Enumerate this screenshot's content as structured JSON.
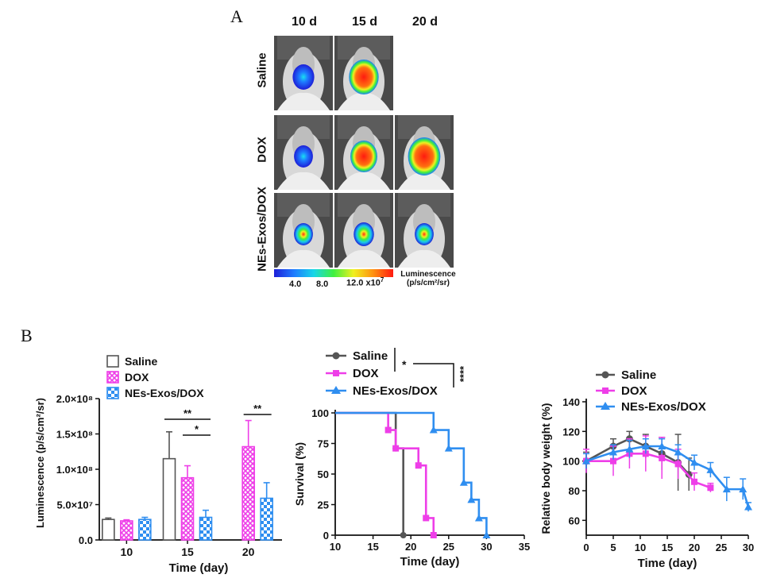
{
  "panelA": {
    "letter": "A",
    "columns": [
      "10 d",
      "15 d",
      "20 d"
    ],
    "rows": [
      "Saline",
      "DOX",
      "NEs-Exos/DOX"
    ],
    "colorbar": {
      "ticks": [
        "4.0",
        "8.0",
        "12.0"
      ],
      "exponent": "x10",
      "exponent_power": "7",
      "title_line1": "Luminescence",
      "title_line2": "(p/s/cm²/sr)"
    }
  },
  "panelB": {
    "letter": "B"
  },
  "colors": {
    "saline": "#555555",
    "dox": "#ee3ee8",
    "nes": "#2f8ef0"
  },
  "chart_data": [
    {
      "type": "bar",
      "categories": [
        "10",
        "15",
        "20"
      ],
      "xlabel": "Time (day)",
      "ylabel": "Luminescence (p/s/cm²/sr)",
      "ylim": [
        0,
        200000000
      ],
      "yticks": [
        "0.0",
        "5.0×10⁷",
        "1.0×10⁸",
        "1.5×10⁸",
        "2.0×10⁸"
      ],
      "legend_position": "top-left",
      "series": [
        {
          "name": "Saline",
          "values": [
            29000000,
            115000000,
            null
          ],
          "errors": [
            2000000,
            38000000,
            null
          ]
        },
        {
          "name": "DOX",
          "values": [
            27000000,
            88000000,
            132000000
          ],
          "errors": [
            1500000,
            17000000,
            37000000
          ]
        },
        {
          "name": "NEs-Exos/DOX",
          "values": [
            29000000,
            32000000,
            59000000
          ],
          "errors": [
            3000000,
            10000000,
            22000000
          ]
        }
      ],
      "annotations": [
        {
          "label": "**",
          "category": "15",
          "from": "Saline",
          "to": "NEs-Exos/DOX"
        },
        {
          "label": "*",
          "category": "15",
          "from": "DOX",
          "to": "NEs-Exos/DOX"
        },
        {
          "label": "**",
          "category": "20",
          "from": "DOX",
          "to": "NEs-Exos/DOX"
        }
      ]
    },
    {
      "type": "line",
      "subtype": "survival-step",
      "xlabel": "Time (day)",
      "ylabel": "Survival (%)",
      "xlim": [
        10,
        35
      ],
      "ylim": [
        0,
        100
      ],
      "xticks": [
        "10",
        "15",
        "20",
        "25",
        "30",
        "35"
      ],
      "yticks": [
        "0",
        "25",
        "50",
        "75",
        "100"
      ],
      "legend_position": "top-left",
      "series": [
        {
          "name": "Saline",
          "x": [
            10,
            18,
            18,
            19,
            19
          ],
          "y": [
            100,
            100,
            71,
            71,
            0
          ]
        },
        {
          "name": "DOX",
          "x": [
            10,
            17,
            17,
            18,
            18,
            21,
            21,
            22,
            22,
            23,
            23
          ],
          "y": [
            100,
            100,
            86,
            86,
            71,
            71,
            57,
            57,
            14,
            14,
            0
          ]
        },
        {
          "name": "NEs-Exos/DOX",
          "x": [
            10,
            23,
            23,
            25,
            25,
            27,
            27,
            28,
            28,
            29,
            29,
            30,
            30
          ],
          "y": [
            100,
            100,
            86,
            86,
            71,
            71,
            43,
            43,
            29,
            29,
            14,
            14,
            0
          ]
        }
      ],
      "annotations": [
        {
          "label": "*",
          "from": "Saline",
          "to": "DOX"
        },
        {
          "label": "****",
          "from": "Saline",
          "to": "NEs-Exos/DOX"
        }
      ]
    },
    {
      "type": "line",
      "xlabel": "Time (day)",
      "ylabel": "Relative body weight (%)",
      "xlim": [
        0,
        30
      ],
      "ylim": [
        50,
        140
      ],
      "xticks": [
        "0",
        "5",
        "10",
        "15",
        "20",
        "25",
        "30"
      ],
      "yticks": [
        "60",
        "80",
        "100",
        "120",
        "140"
      ],
      "legend_position": "top-left",
      "series": [
        {
          "name": "Saline",
          "x": [
            0,
            5,
            8,
            11,
            14,
            17,
            19
          ],
          "y": [
            100,
            110,
            115,
            110,
            105,
            99,
            91
          ],
          "errors": [
            6,
            5,
            5,
            8,
            11,
            19,
            11
          ]
        },
        {
          "name": "DOX",
          "x": [
            0,
            5,
            8,
            11,
            14,
            17,
            20,
            23
          ],
          "y": [
            100,
            100,
            105,
            105,
            102,
            98,
            86,
            82
          ],
          "errors": [
            8,
            10,
            10,
            12,
            14,
            10,
            6,
            3
          ]
        },
        {
          "name": "NEs-Exos/DOX",
          "x": [
            0,
            5,
            8,
            11,
            14,
            17,
            20,
            23,
            26,
            29,
            30
          ],
          "y": [
            100,
            106,
            108,
            110,
            110,
            106,
            99,
            94,
            81,
            81,
            69
          ],
          "errors": [
            5,
            5,
            6,
            5,
            5,
            5,
            5,
            5,
            8,
            7,
            3
          ]
        }
      ]
    }
  ]
}
